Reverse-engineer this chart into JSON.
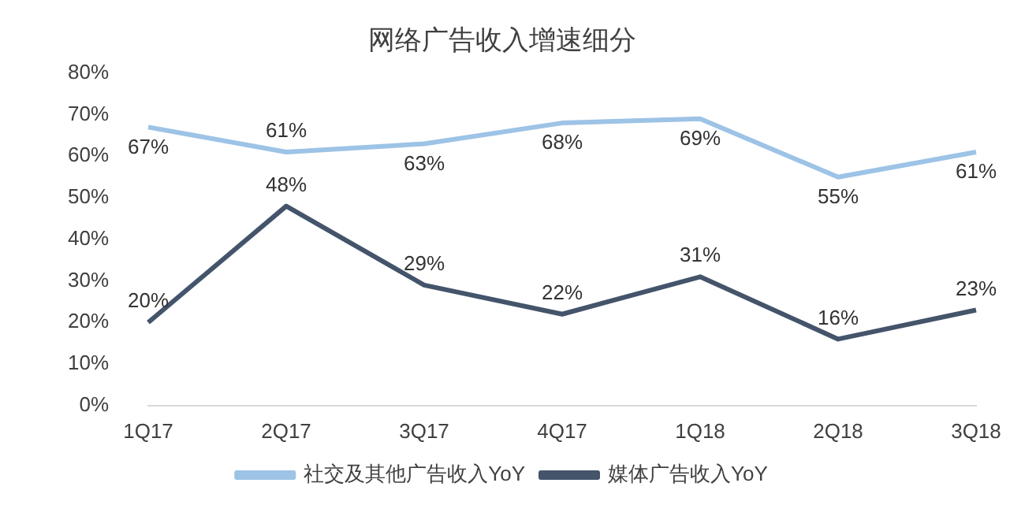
{
  "chart_data": {
    "type": "line",
    "title": "网络广告收入增速细分",
    "categories": [
      "1Q17",
      "2Q17",
      "3Q17",
      "4Q17",
      "1Q18",
      "2Q18",
      "3Q18"
    ],
    "series": [
      {
        "name": "社交及其他广告收入YoY",
        "color": "#9dc3e6",
        "values": [
          67,
          61,
          63,
          68,
          69,
          55,
          61
        ],
        "value_labels": [
          "67%",
          "61%",
          "63%",
          "68%",
          "69%",
          "55%",
          "61%"
        ]
      },
      {
        "name": "媒体广告收入YoY",
        "color": "#44546a",
        "values": [
          20,
          48,
          29,
          22,
          31,
          16,
          23
        ],
        "value_labels": [
          "20%",
          "48%",
          "29%",
          "22%",
          "31%",
          "16%",
          "23%"
        ]
      }
    ],
    "ylim": [
      0,
      80
    ],
    "yticks": [
      {
        "value": 0,
        "label": "0%"
      },
      {
        "value": 10,
        "label": "10%"
      },
      {
        "value": 20,
        "label": "20%"
      },
      {
        "value": 30,
        "label": "30%"
      },
      {
        "value": 40,
        "label": "40%"
      },
      {
        "value": 50,
        "label": "50%"
      },
      {
        "value": 60,
        "label": "60%"
      },
      {
        "value": 70,
        "label": "70%"
      },
      {
        "value": 80,
        "label": "80%"
      }
    ],
    "grid": false,
    "legend": "bottom",
    "marker": "none",
    "line_style": "solid"
  }
}
